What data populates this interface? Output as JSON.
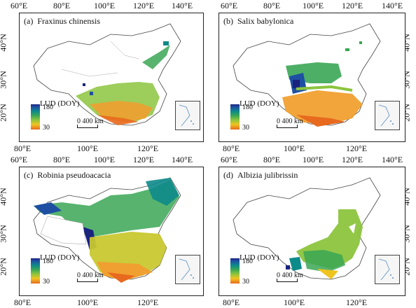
{
  "top_ticks": [
    "60°E",
    "80°E",
    "100°E",
    "120°E",
    "140°E"
  ],
  "bottom_ticks": [
    "80°E",
    "100°E",
    "120°E"
  ],
  "lat_ticks": [
    "40°N",
    "30°N",
    "20°N"
  ],
  "panels": [
    {
      "label": "(a)",
      "species": "Fraxinus chinensis"
    },
    {
      "label": "(b)",
      "species": "Salix babylonica"
    },
    {
      "label": "(c)",
      "species": "Robinia pseudoacacia"
    },
    {
      "label": "(d)",
      "species": "Albizia julibrissin"
    }
  ],
  "legend": {
    "title": "LUD (DOY)",
    "max": "180",
    "min": "30"
  },
  "scale_bar": {
    "text": "0  400 km"
  },
  "colors": {
    "dark_blue": "#1a237e",
    "teal": "#0d8a8a",
    "green": "#3aa655",
    "yellow": "#f0c420",
    "orange": "#e86a1e"
  }
}
